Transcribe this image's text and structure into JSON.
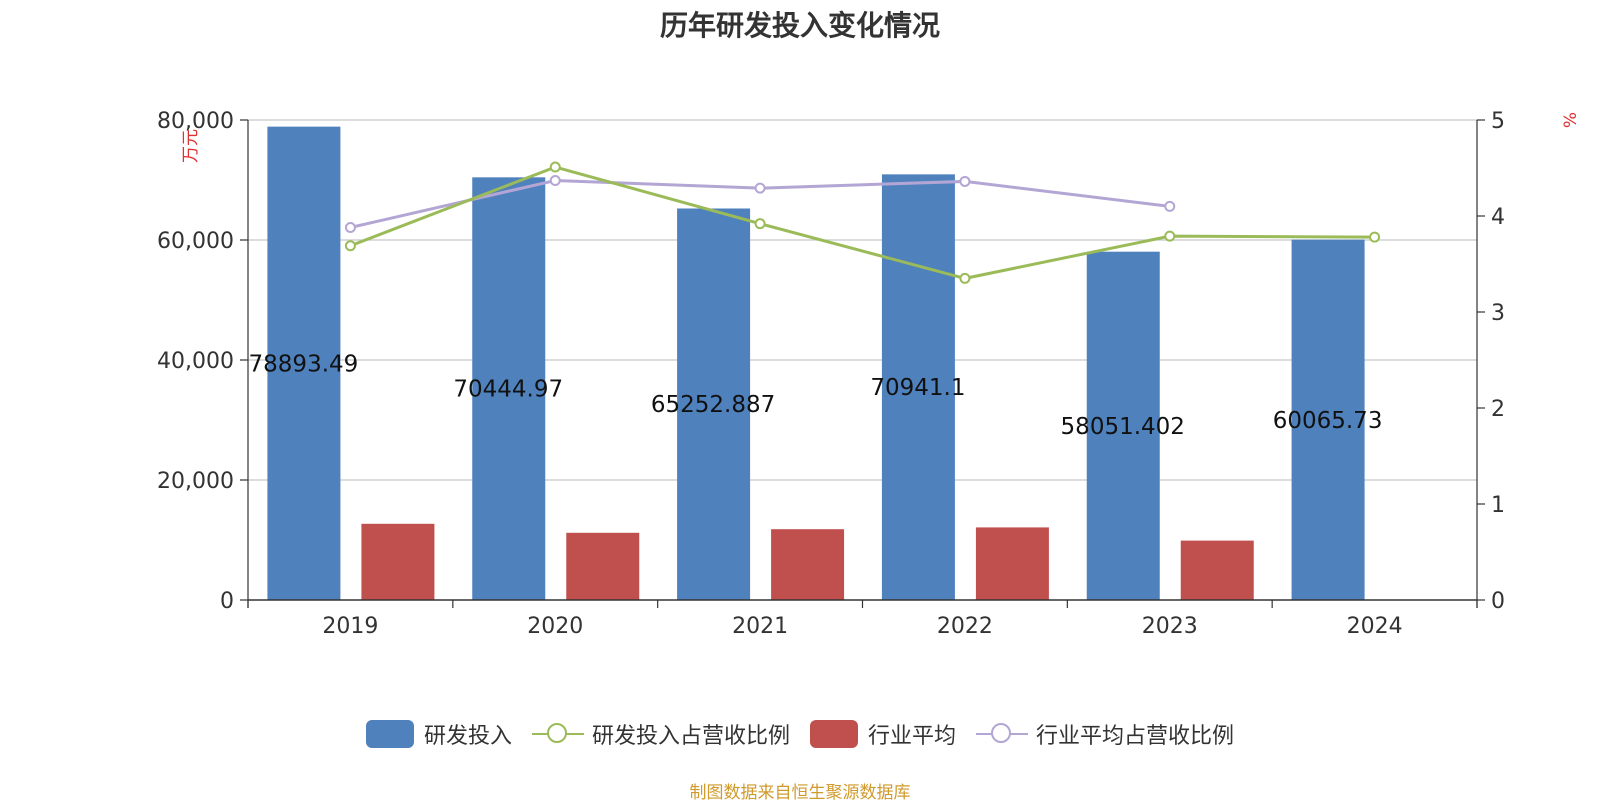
{
  "title": "历年研发投入变化情况",
  "source": "制图数据来自恒生聚源数据库",
  "colors": {
    "rd": "#4f81bd",
    "rd_ratio": "#9bbb59",
    "industry": "#c0504d",
    "industry_ratio": "#b3a6d4",
    "source": "#d09a2c",
    "unit": "#e03030"
  },
  "legend": [
    {
      "label": "研发投入",
      "kind": "bar",
      "color": "#4f81bd"
    },
    {
      "label": "研发投入占营收比例",
      "kind": "line",
      "color": "#9bbb59"
    },
    {
      "label": "行业平均",
      "kind": "bar",
      "color": "#c0504d"
    },
    {
      "label": "行业平均占营收比例",
      "kind": "line",
      "color": "#b3a6d4"
    }
  ],
  "chart_data": {
    "type": "bar",
    "title": "历年研发投入变化情况",
    "categories": [
      "2019",
      "2020",
      "2021",
      "2022",
      "2023",
      "2024"
    ],
    "y_left": {
      "label": "万元",
      "min": 0,
      "max": 80000,
      "ticks": [
        0,
        20000,
        40000,
        60000,
        80000
      ],
      "tick_labels": [
        "0",
        "20,000",
        "40,000",
        "60,000",
        "80,000"
      ]
    },
    "y_right": {
      "label": "%",
      "min": 0,
      "max": 5,
      "ticks": [
        0,
        1,
        2,
        3,
        4,
        5
      ],
      "tick_labels": [
        "0",
        "1",
        "2",
        "3",
        "4",
        "5"
      ]
    },
    "series": [
      {
        "name": "研发投入",
        "type": "bar",
        "axis": "left",
        "values": [
          78893.49,
          70444.97,
          65252.887,
          70941.1,
          58051.402,
          60065.73
        ],
        "labels": [
          "78893.49",
          "70444.97",
          "65252.887",
          "70941.1",
          "58051.402",
          "60065.73"
        ]
      },
      {
        "name": "行业平均",
        "type": "bar",
        "axis": "left",
        "values": [
          12700,
          11200,
          11800,
          12100,
          9900,
          null
        ]
      },
      {
        "name": "研发投入占营收比例",
        "type": "line",
        "axis": "right",
        "values": [
          3.69,
          4.51,
          3.92,
          3.35,
          3.79,
          3.78
        ]
      },
      {
        "name": "行业平均占营收比例",
        "type": "line",
        "axis": "right",
        "values": [
          3.88,
          4.37,
          4.29,
          4.36,
          4.1,
          null
        ]
      }
    ]
  }
}
